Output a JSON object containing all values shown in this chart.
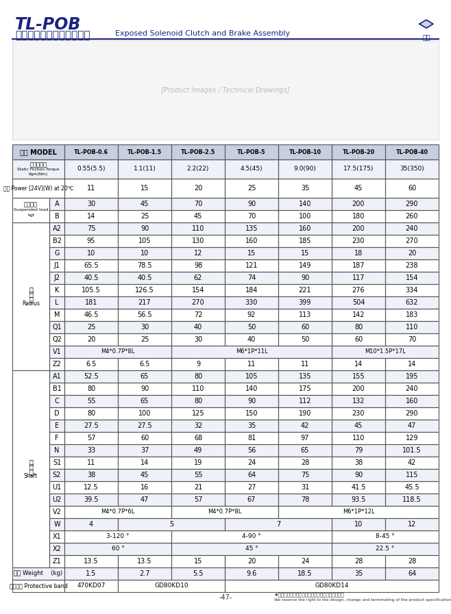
{
  "title_main": "TL-POB",
  "title_chinese": "外露式電磁離合、煞車器組",
  "title_english": "Exposed Solenoid Clutch and Brake Assembly",
  "bg_color": "#ffffff",
  "header_bg": "#c5cfe0",
  "alt_bg": "#eef1f8",
  "normal_bg": "#ffffff",
  "border_color": "#555555",
  "models": [
    "TL-POB-0.6",
    "TL-POB-1.5",
    "TL-POB-2.5",
    "TL-POB-5",
    "TL-POB-10",
    "TL-POB-20",
    "TL-POB-40"
  ],
  "static_torque": [
    "0.55(5.5)",
    "1.1(11)",
    "2.2(22)",
    "4.5(45)",
    "9.0(90)",
    "17.5(175)",
    "35(350)"
  ],
  "power": [
    "11",
    "15",
    "20",
    "25",
    "35",
    "45",
    "60"
  ],
  "suspended_A": [
    "30",
    "45",
    "70",
    "90",
    "140",
    "200",
    "290"
  ],
  "suspended_B": [
    "14",
    "25",
    "45",
    "70",
    "100",
    "180",
    "260"
  ],
  "radius_rows": [
    [
      "A2",
      "75",
      "90",
      "110",
      "135",
      "160",
      "200",
      "240"
    ],
    [
      "B2",
      "95",
      "105",
      "130",
      "160",
      "185",
      "230",
      "270"
    ],
    [
      "G",
      "10",
      "10",
      "12",
      "15",
      "15",
      "18",
      "20"
    ],
    [
      "J1",
      "65.5",
      "78.5",
      "98",
      "121",
      "149",
      "187",
      "238"
    ],
    [
      "J2",
      "40.5",
      "40.5",
      "62",
      "74",
      "90",
      "117",
      "154"
    ],
    [
      "K",
      "105.5",
      "126.5",
      "154",
      "184",
      "221",
      "276",
      "334"
    ],
    [
      "L",
      "181",
      "217",
      "270",
      "330",
      "399",
      "504",
      "632"
    ],
    [
      "M",
      "46.5",
      "56.5",
      "72",
      "92",
      "113",
      "142",
      "183"
    ],
    [
      "Q1",
      "25",
      "30",
      "40",
      "50",
      "60",
      "80",
      "110"
    ],
    [
      "Q2",
      "20",
      "25",
      "30",
      "40",
      "50",
      "60",
      "70"
    ],
    [
      "V1",
      "M4*0.7P*8L",
      "M4*0.7P*8L",
      "M6*1P*11L",
      "M6*1P*11L",
      "M6*1P*11L",
      "M10*1.5P*17L",
      "M10*1.5P*17L"
    ],
    [
      "Z2",
      "6.5",
      "6.5",
      "9",
      "11",
      "11",
      "14",
      "14"
    ]
  ],
  "shaft_rows": [
    [
      "A1",
      "52.5",
      "65",
      "80",
      "105",
      "135",
      "155",
      "195"
    ],
    [
      "B1",
      "80",
      "90",
      "110",
      "140",
      "175",
      "200",
      "240"
    ],
    [
      "C",
      "55",
      "65",
      "80",
      "90",
      "112",
      "132",
      "160"
    ],
    [
      "D",
      "80",
      "100",
      "125",
      "150",
      "190",
      "230",
      "290"
    ],
    [
      "E",
      "27.5",
      "27.5",
      "32",
      "35",
      "42",
      "45",
      "47"
    ],
    [
      "F",
      "57",
      "60",
      "68",
      "81",
      "97",
      "110",
      "129"
    ],
    [
      "N",
      "33",
      "37",
      "49",
      "56",
      "65",
      "79",
      "101.5"
    ],
    [
      "S1",
      "11",
      "14",
      "19",
      "24",
      "28",
      "38",
      "42"
    ],
    [
      "S2",
      "38",
      "45",
      "55",
      "64",
      "75",
      "90",
      "115"
    ],
    [
      "U1",
      "12.5",
      "16",
      "21",
      "27",
      "31",
      "41.5",
      "45.5"
    ],
    [
      "U2",
      "39.5",
      "47",
      "57",
      "67",
      "78",
      "93.5",
      "118.5"
    ],
    [
      "V2",
      "M4*0.7P*6L",
      "M4*0.7P*6L",
      "M4*0.7P*8L",
      "M4*0.7P*8L",
      "M6*1P*12L",
      "M6*1P*12L",
      "M6*1P*12L"
    ],
    [
      "W",
      "4",
      "5",
      "5",
      "7",
      "7",
      "10",
      "12"
    ],
    [
      "X1",
      "3-120°",
      "3-120°",
      "4-90°",
      "4-90°",
      "4-90°",
      "8-45°",
      "8-45°"
    ],
    [
      "X2",
      "60°",
      "60°",
      "45°",
      "45°",
      "45°",
      "22.5°",
      "22.5°"
    ],
    [
      "Z1",
      "13.5",
      "13.5",
      "15",
      "20",
      "24",
      "28",
      "28"
    ]
  ],
  "weight": [
    "1.5",
    "2.7",
    "5.5",
    "9.6",
    "18.5",
    "35",
    "64"
  ],
  "protective_band": [
    "470KD07",
    "GD80KD10",
    "GD80KD10",
    "GD80KD14",
    "GD80KD14",
    "GD80KD14",
    "GD80KD14"
  ],
  "footer_chinese": "★本公司保留產品規格尺寸設計變更或停用之權利。",
  "footer_english": "We reserve the right to the design, change and terminating of the product specification and size.",
  "page_num": "-47-"
}
